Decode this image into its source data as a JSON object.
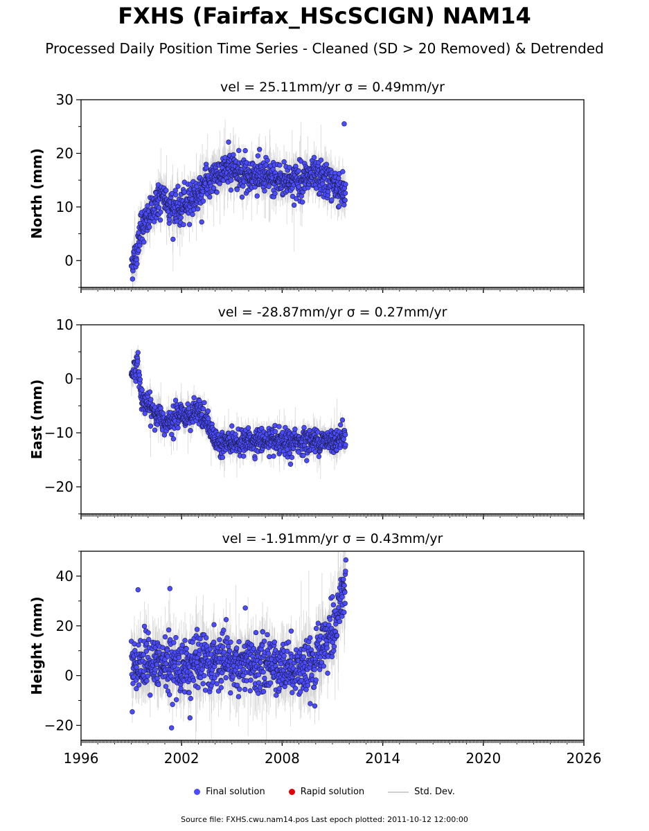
{
  "header": {
    "title": "FXHS (Fairfax_HScSCIGN) NAM14",
    "subtitle": "Processed Daily Position Time Series - Cleaned (SD > 20 Removed) & Detrended"
  },
  "legend": {
    "final": "Final solution",
    "rapid": "Rapid solution",
    "stddev": "Std. Dev."
  },
  "footer": {
    "source": "Source file: FXHS.cwu.nam14.pos  Last epoch plotted: 2011-10-12 12:00:00"
  },
  "colors": {
    "final": "#4b4bff",
    "rapid": "#e00000",
    "stddev": "#c8c8c8",
    "point_edge": "#1a1a40"
  },
  "chart_data": [
    {
      "type": "scatter",
      "title": "vel = 25.11mm/yr   σ = 0.49mm/yr",
      "ylabel": "North (mm)",
      "xlim": [
        1996,
        2026
      ],
      "ylim": [
        -5,
        30
      ],
      "yticks": [
        0,
        10,
        20,
        30
      ],
      "xticks": [
        1996,
        2002,
        2008,
        2014,
        2020,
        2026
      ],
      "show_xtick_labels": false,
      "outliers": [
        [
          2004.8,
          22.1
        ],
        [
          2011.7,
          25.5
        ],
        [
          2005.8,
          20.5
        ],
        [
          2003.2,
          7.2
        ]
      ],
      "series": [
        {
          "name": "Final solution",
          "x_range": [
            1999.0,
            2011.78
          ],
          "trend": [
            [
              1999.0,
              -0.5
            ],
            [
              1999.3,
              1.0
            ],
            [
              1999.5,
              6.0
            ],
            [
              2000.0,
              7.5
            ],
            [
              2000.5,
              11.0
            ],
            [
              2001.0,
              11.5
            ],
            [
              2001.5,
              9.5
            ],
            [
              2002.0,
              9.5
            ],
            [
              2002.5,
              11.5
            ],
            [
              2003.0,
              12.5
            ],
            [
              2003.5,
              14.5
            ],
            [
              2004.0,
              16.0
            ],
            [
              2004.5,
              16.5
            ],
            [
              2005.0,
              17.5
            ],
            [
              2005.5,
              16.5
            ],
            [
              2006.0,
              16.0
            ],
            [
              2007.0,
              15.5
            ],
            [
              2008.0,
              15.0
            ],
            [
              2009.0,
              15.0
            ],
            [
              2010.0,
              15.5
            ],
            [
              2011.0,
              14.5
            ],
            [
              2011.78,
              12.5
            ]
          ],
          "scatter_sd": 1.6
        }
      ]
    },
    {
      "type": "scatter",
      "title": "vel = -28.87mm/yr   σ = 0.27mm/yr",
      "ylabel": "East (mm)",
      "xlim": [
        1996,
        2026
      ],
      "ylim": [
        -25,
        10
      ],
      "yticks": [
        -20,
        -10,
        0,
        10
      ],
      "xticks": [
        1996,
        2002,
        2008,
        2014,
        2020,
        2026
      ],
      "show_xtick_labels": false,
      "outliers": [
        [
          2000.4,
          -9.5
        ],
        [
          2008.5,
          -15.8
        ]
      ],
      "series": [
        {
          "name": "Final solution",
          "x_range": [
            1999.0,
            2011.78
          ],
          "trend": [
            [
              1999.0,
              1.0
            ],
            [
              1999.4,
              2.5
            ],
            [
              1999.6,
              -3.5
            ],
            [
              2000.0,
              -5.0
            ],
            [
              2000.5,
              -6.5
            ],
            [
              2001.0,
              -8.0
            ],
            [
              2001.5,
              -7.0
            ],
            [
              2002.0,
              -6.5
            ],
            [
              2002.5,
              -7.0
            ],
            [
              2003.0,
              -6.0
            ],
            [
              2003.5,
              -8.0
            ],
            [
              2004.0,
              -11.5
            ],
            [
              2005.0,
              -12.0
            ],
            [
              2006.0,
              -11.5
            ],
            [
              2007.0,
              -11.5
            ],
            [
              2008.0,
              -12.0
            ],
            [
              2009.0,
              -11.5
            ],
            [
              2010.0,
              -11.5
            ],
            [
              2011.0,
              -11.5
            ],
            [
              2011.78,
              -10.5
            ]
          ],
          "scatter_sd": 1.1
        }
      ]
    },
    {
      "type": "scatter",
      "title": "vel = -1.91mm/yr   σ = 0.43mm/yr",
      "ylabel": "Height (mm)",
      "xlim": [
        1996,
        2026
      ],
      "ylim": [
        -26,
        50
      ],
      "yticks": [
        -20,
        0,
        20,
        40
      ],
      "xticks": [
        1996,
        2002,
        2008,
        2014,
        2020,
        2026
      ],
      "show_xtick_labels": true,
      "outliers": [
        [
          1999.4,
          34.5
        ],
        [
          2001.3,
          35.0
        ],
        [
          2005.8,
          27.2
        ],
        [
          2001.4,
          -21.0
        ],
        [
          2002.5,
          -17.0
        ],
        [
          2011.8,
          46.5
        ]
      ],
      "series": [
        {
          "name": "Final solution",
          "x_range": [
            1999.0,
            2011.78
          ],
          "trend": [
            [
              1999.0,
              4.0
            ],
            [
              2000.0,
              5.0
            ],
            [
              2001.0,
              4.0
            ],
            [
              2002.0,
              3.5
            ],
            [
              2003.0,
              5.0
            ],
            [
              2004.0,
              5.0
            ],
            [
              2005.0,
              4.0
            ],
            [
              2006.0,
              4.0
            ],
            [
              2007.0,
              4.5
            ],
            [
              2008.0,
              4.0
            ],
            [
              2009.0,
              3.5
            ],
            [
              2009.8,
              1.5
            ],
            [
              2010.3,
              10.0
            ],
            [
              2010.8,
              15.0
            ],
            [
              2011.2,
              22.0
            ],
            [
              2011.5,
              30.0
            ],
            [
              2011.78,
              38.0
            ]
          ],
          "scatter_sd": 5.5
        }
      ]
    }
  ]
}
